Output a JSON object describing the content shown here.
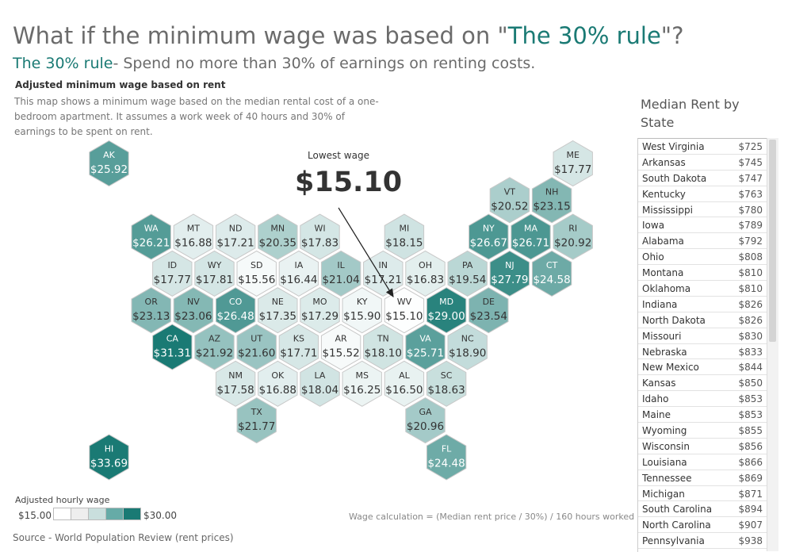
{
  "header": {
    "title_prefix": "What if the minimum wage was based on \"",
    "title_highlight": "The 30% rule",
    "title_suffix": "\"?",
    "subtitle_highlight": "The 30% rule",
    "subtitle_rest": "- Spend no more than 30% of earnings on renting costs."
  },
  "map": {
    "heading": "Adjusted minimum wage based on rent",
    "description": "This map shows a minimum wage based on the median rental cost of a one-bedroom apartment. It assumes a work week of 40 hours and 30% of earnings to be spent on rent.",
    "annotation_label": "Lowest wage",
    "annotation_value": "$15.10"
  },
  "legend": {
    "title": "Adjusted hourly wage",
    "min_label": "$15.00",
    "max_label": "$30.00",
    "colors": [
      "#ffffff",
      "#eeeeee",
      "#c9dfdd",
      "#66aba7",
      "#1a7a74"
    ]
  },
  "footer": {
    "formula": "Wage calculation = (Median rent price / 30%) / 160 hours worked",
    "source": "Source - World Population Review (rent prices)"
  },
  "chart_data": {
    "type": "hex-map",
    "color_scale": {
      "min": 15.0,
      "max": 30.0,
      "low_color": "#ffffff",
      "high_color": "#1a7a74"
    },
    "states": [
      {
        "code": "AK",
        "wage": "$25.92",
        "value": 25.92,
        "row": 0,
        "col": 0
      },
      {
        "code": "ME",
        "wage": "$17.77",
        "value": 17.77,
        "row": 0,
        "col": 11
      },
      {
        "code": "VT",
        "wage": "$20.52",
        "value": 20.52,
        "row": 1,
        "col": 9.5
      },
      {
        "code": "NH",
        "wage": "$23.15",
        "value": 23.15,
        "row": 1,
        "col": 10.5
      },
      {
        "code": "WA",
        "wage": "$26.21",
        "value": 26.21,
        "row": 2,
        "col": 1
      },
      {
        "code": "MT",
        "wage": "$16.88",
        "value": 16.88,
        "row": 2,
        "col": 2
      },
      {
        "code": "ND",
        "wage": "$17.21",
        "value": 17.21,
        "row": 2,
        "col": 3
      },
      {
        "code": "MN",
        "wage": "$20.35",
        "value": 20.35,
        "row": 2,
        "col": 4
      },
      {
        "code": "WI",
        "wage": "$17.83",
        "value": 17.83,
        "row": 2,
        "col": 5
      },
      {
        "code": "MI",
        "wage": "$18.15",
        "value": 18.15,
        "row": 2,
        "col": 7
      },
      {
        "code": "NY",
        "wage": "$26.67",
        "value": 26.67,
        "row": 2,
        "col": 9
      },
      {
        "code": "MA",
        "wage": "$26.71",
        "value": 26.71,
        "row": 2,
        "col": 10
      },
      {
        "code": "RI",
        "wage": "$20.92",
        "value": 20.92,
        "row": 2,
        "col": 11
      },
      {
        "code": "ID",
        "wage": "$17.77",
        "value": 17.77,
        "row": 3,
        "col": 1.5
      },
      {
        "code": "WY",
        "wage": "$17.81",
        "value": 17.81,
        "row": 3,
        "col": 2.5
      },
      {
        "code": "SD",
        "wage": "$15.56",
        "value": 15.56,
        "row": 3,
        "col": 3.5
      },
      {
        "code": "IA",
        "wage": "$16.44",
        "value": 16.44,
        "row": 3,
        "col": 4.5
      },
      {
        "code": "IL",
        "wage": "$21.04",
        "value": 21.04,
        "row": 3,
        "col": 5.5
      },
      {
        "code": "IN",
        "wage": "$17.21",
        "value": 17.21,
        "row": 3,
        "col": 6.5
      },
      {
        "code": "OH",
        "wage": "$16.83",
        "value": 16.83,
        "row": 3,
        "col": 7.5
      },
      {
        "code": "PA",
        "wage": "$19.54",
        "value": 19.54,
        "row": 3,
        "col": 8.5
      },
      {
        "code": "NJ",
        "wage": "$27.79",
        "value": 27.79,
        "row": 3,
        "col": 9.5
      },
      {
        "code": "CT",
        "wage": "$24.58",
        "value": 24.58,
        "row": 3,
        "col": 10.5
      },
      {
        "code": "OR",
        "wage": "$23.13",
        "value": 23.13,
        "row": 4,
        "col": 1
      },
      {
        "code": "NV",
        "wage": "$23.06",
        "value": 23.06,
        "row": 4,
        "col": 2
      },
      {
        "code": "CO",
        "wage": "$26.48",
        "value": 26.48,
        "row": 4,
        "col": 3
      },
      {
        "code": "NE",
        "wage": "$17.35",
        "value": 17.35,
        "row": 4,
        "col": 4
      },
      {
        "code": "MO",
        "wage": "$17.29",
        "value": 17.29,
        "row": 4,
        "col": 5
      },
      {
        "code": "KY",
        "wage": "$15.90",
        "value": 15.9,
        "row": 4,
        "col": 6
      },
      {
        "code": "WV",
        "wage": "$15.10",
        "value": 15.1,
        "row": 4,
        "col": 7
      },
      {
        "code": "MD",
        "wage": "$29.00",
        "value": 29.0,
        "row": 4,
        "col": 8
      },
      {
        "code": "DE",
        "wage": "$23.54",
        "value": 23.54,
        "row": 4,
        "col": 9
      },
      {
        "code": "CA",
        "wage": "$31.31",
        "value": 31.31,
        "row": 5,
        "col": 1.5
      },
      {
        "code": "AZ",
        "wage": "$21.92",
        "value": 21.92,
        "row": 5,
        "col": 2.5
      },
      {
        "code": "UT",
        "wage": "$21.60",
        "value": 21.6,
        "row": 5,
        "col": 3.5
      },
      {
        "code": "KS",
        "wage": "$17.71",
        "value": 17.71,
        "row": 5,
        "col": 4.5
      },
      {
        "code": "AR",
        "wage": "$15.52",
        "value": 15.52,
        "row": 5,
        "col": 5.5
      },
      {
        "code": "TN",
        "wage": "$18.10",
        "value": 18.1,
        "row": 5,
        "col": 6.5
      },
      {
        "code": "VA",
        "wage": "$25.71",
        "value": 25.71,
        "row": 5,
        "col": 7.5
      },
      {
        "code": "NC",
        "wage": "$18.90",
        "value": 18.9,
        "row": 5,
        "col": 8.5
      },
      {
        "code": "NM",
        "wage": "$17.58",
        "value": 17.58,
        "row": 6,
        "col": 3
      },
      {
        "code": "OK",
        "wage": "$16.88",
        "value": 16.88,
        "row": 6,
        "col": 4
      },
      {
        "code": "LA",
        "wage": "$18.04",
        "value": 18.04,
        "row": 6,
        "col": 5
      },
      {
        "code": "MS",
        "wage": "$16.25",
        "value": 16.25,
        "row": 6,
        "col": 6
      },
      {
        "code": "AL",
        "wage": "$16.50",
        "value": 16.5,
        "row": 6,
        "col": 7
      },
      {
        "code": "SC",
        "wage": "$18.63",
        "value": 18.63,
        "row": 6,
        "col": 8
      },
      {
        "code": "TX",
        "wage": "$21.77",
        "value": 21.77,
        "row": 7,
        "col": 3.5
      },
      {
        "code": "GA",
        "wage": "$20.96",
        "value": 20.96,
        "row": 7,
        "col": 7.5
      },
      {
        "code": "HI",
        "wage": "$33.69",
        "value": 33.69,
        "row": 8,
        "col": 0
      },
      {
        "code": "FL",
        "wage": "$24.48",
        "value": 24.48,
        "row": 8,
        "col": 8
      }
    ]
  },
  "rent_table": {
    "title": "Median Rent by State",
    "rows": [
      {
        "state": "West Virginia",
        "rent": "$725"
      },
      {
        "state": "Arkansas",
        "rent": "$745"
      },
      {
        "state": "South Dakota",
        "rent": "$747"
      },
      {
        "state": "Kentucky",
        "rent": "$763"
      },
      {
        "state": "Mississippi",
        "rent": "$780"
      },
      {
        "state": "Iowa",
        "rent": "$789"
      },
      {
        "state": "Alabama",
        "rent": "$792"
      },
      {
        "state": "Ohio",
        "rent": "$808"
      },
      {
        "state": "Montana",
        "rent": "$810"
      },
      {
        "state": "Oklahoma",
        "rent": "$810"
      },
      {
        "state": "Indiana",
        "rent": "$826"
      },
      {
        "state": "North Dakota",
        "rent": "$826"
      },
      {
        "state": "Missouri",
        "rent": "$830"
      },
      {
        "state": "Nebraska",
        "rent": "$833"
      },
      {
        "state": "New Mexico",
        "rent": "$844"
      },
      {
        "state": "Kansas",
        "rent": "$850"
      },
      {
        "state": "Idaho",
        "rent": "$853"
      },
      {
        "state": "Maine",
        "rent": "$853"
      },
      {
        "state": "Wyoming",
        "rent": "$855"
      },
      {
        "state": "Wisconsin",
        "rent": "$856"
      },
      {
        "state": "Louisiana",
        "rent": "$866"
      },
      {
        "state": "Tennessee",
        "rent": "$869"
      },
      {
        "state": "Michigan",
        "rent": "$871"
      },
      {
        "state": "South Carolina",
        "rent": "$894"
      },
      {
        "state": "North Carolina",
        "rent": "$907"
      },
      {
        "state": "Pennsylvania",
        "rent": "$938"
      }
    ]
  }
}
